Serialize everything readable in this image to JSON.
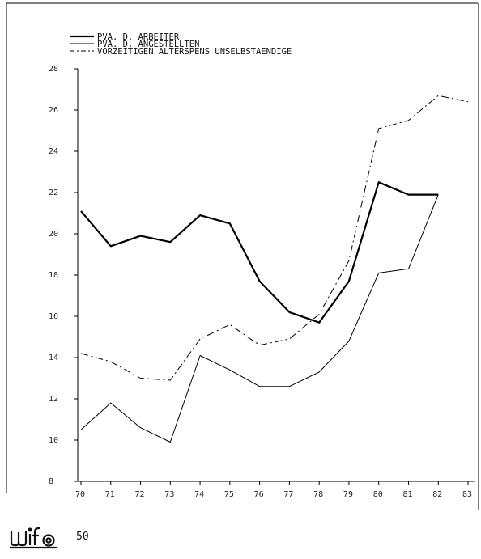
{
  "chart_data": {
    "type": "line",
    "title": "",
    "xlabel": "",
    "ylabel": "",
    "x": [
      "70",
      "71",
      "72",
      "73",
      "74",
      "75",
      "76",
      "77",
      "78",
      "79",
      "80",
      "81",
      "82",
      "83"
    ],
    "xlim": [
      70,
      83
    ],
    "ylim": [
      8,
      28
    ],
    "yticks": [
      8,
      10,
      12,
      14,
      16,
      18,
      20,
      22,
      24,
      26,
      28
    ],
    "grid": false,
    "legend_position": "top-left",
    "series": [
      {
        "name": "PVA. D. ARBEITER",
        "style": "solid-thick",
        "color": "#000000",
        "values": [
          21.1,
          19.4,
          19.9,
          19.6,
          20.9,
          20.5,
          17.7,
          16.2,
          15.7,
          17.7,
          22.5,
          21.9,
          21.9,
          null
        ]
      },
      {
        "name": "PVA. D. ANGESTELLTEN",
        "style": "solid-thin",
        "color": "#000000",
        "values": [
          10.5,
          11.8,
          10.6,
          9.9,
          14.1,
          13.4,
          12.6,
          12.6,
          13.3,
          14.8,
          18.1,
          18.3,
          21.9,
          null
        ]
      },
      {
        "name": "VORZEITIGEN ALTERSPENS UNSELBSTAENDIGE",
        "style": "dash-dot",
        "color": "#000000",
        "values": [
          14.2,
          13.8,
          13.0,
          12.9,
          14.9,
          15.6,
          14.6,
          14.9,
          16.1,
          18.7,
          25.1,
          25.5,
          26.7,
          26.4
        ]
      }
    ]
  },
  "footer": {
    "page_number": "50",
    "logo_name": "wifo-logo"
  }
}
